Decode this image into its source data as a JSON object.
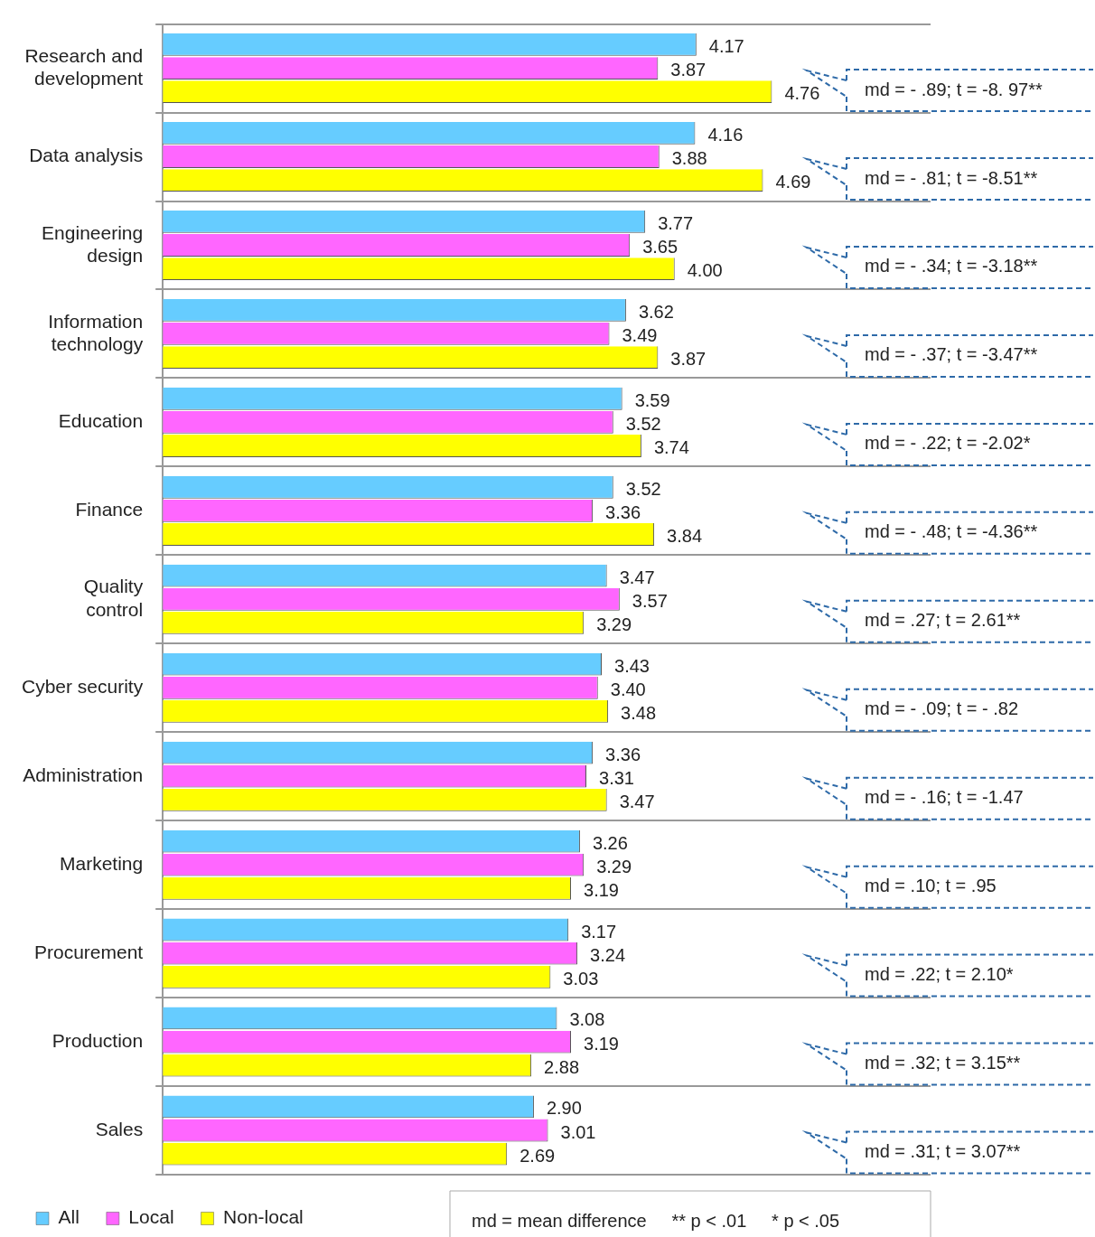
{
  "chart_data": {
    "type": "bar",
    "orientation": "horizontal",
    "grid": "y",
    "legend": "bottom left",
    "xlim": [
      0,
      6
    ],
    "tick_labels": "y",
    "categories": [
      "Research and development",
      "Data analysis",
      "Engineering design",
      "Information technology",
      "Education",
      "Finance",
      "Quality control",
      "Cyber security",
      "Administration",
      "Marketing",
      "Procurement",
      "Production",
      "Sales"
    ],
    "series": [
      {
        "name": "All",
        "color": "#66ccff",
        "values": [
          4.17,
          4.16,
          3.77,
          3.62,
          3.59,
          3.52,
          3.47,
          3.43,
          3.36,
          3.26,
          3.17,
          3.08,
          2.9
        ],
        "value_labels": [
          "4.17",
          "4.16",
          "3.77",
          "3.62",
          "3.59",
          "3.52",
          "3.47",
          "3.43",
          "3.36",
          "3.26",
          "3.17",
          "3.08",
          "2.90"
        ]
      },
      {
        "name": "Local",
        "color": "#ff66ff",
        "values": [
          3.87,
          3.88,
          3.65,
          3.49,
          3.52,
          3.36,
          3.57,
          3.4,
          3.31,
          3.29,
          3.24,
          3.19,
          3.01
        ],
        "value_labels": [
          "3.87",
          "3.88",
          "3.65",
          "3.49",
          "3.52",
          "3.36",
          "3.57",
          "3.40",
          "3.31",
          "3.29",
          "3.24",
          "3.19",
          "3.01"
        ]
      },
      {
        "name": "Non-local",
        "color": "#ffff00",
        "values": [
          4.76,
          4.69,
          4.0,
          3.87,
          3.74,
          3.84,
          3.29,
          3.48,
          3.47,
          3.19,
          3.03,
          2.88,
          2.69
        ],
        "value_labels": [
          "4.76",
          "4.69",
          "4.00",
          "3.87",
          "3.74",
          "3.84",
          "3.29",
          "3.48",
          "3.47",
          "3.19",
          "3.03",
          "2.88",
          "2.69"
        ]
      }
    ],
    "annotations": [
      "md = - .89; t = -8. 97**",
      "md = - .81; t = -8.51**",
      "md = - .34; t = -3.18**",
      "md = - .37; t = -3.47**",
      "md = - .22; t = -2.02*",
      "md = - .48; t = -4.36**",
      "md = .27; t = 2.61**",
      "md = - .09; t = - .82",
      "md = - .16; t = -1.47",
      "md = .10; t = .95",
      "md = .22; t = 2.10*",
      "md = .32; t = 3.15**",
      "md = .31; t = 3.07**",
      "md = mean difference     ** p < .01     * p < .05"
    ]
  }
}
